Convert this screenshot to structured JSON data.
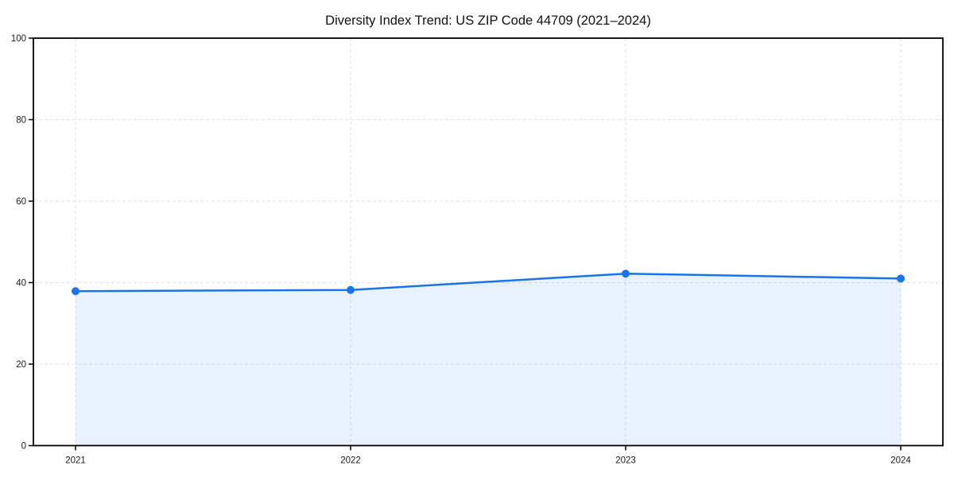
{
  "chart_data": {
    "type": "area",
    "title": "Diversity Index Trend: US ZIP Code 44709 (2021–2024)",
    "categories": [
      "2021",
      "2022",
      "2023",
      "2024"
    ],
    "series": [
      {
        "name": "Diversity Index",
        "values": [
          37.9,
          38.2,
          42.2,
          41.0
        ]
      }
    ],
    "xlabel": "",
    "ylabel": "",
    "ylim": [
      0,
      100
    ],
    "yticks": [
      0,
      20,
      40,
      60,
      80,
      100
    ],
    "grid": true,
    "grid_style": "dashed",
    "legend_position": "none",
    "colors": {
      "line": "#1a73e8",
      "marker": "#1a73e8",
      "fill": "#1a73e8",
      "fill_opacity": 0.1,
      "grid": "#e0e0e0",
      "axis": "#000000",
      "tick_label": "#1a1a1a",
      "title": "#111111",
      "background": "#ffffff"
    },
    "marker_radius": 5,
    "line_width": 2.5
  }
}
